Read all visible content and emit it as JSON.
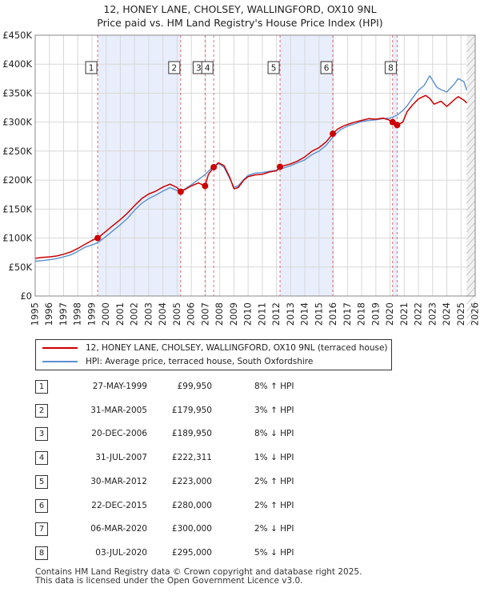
{
  "title_line1": "12, HONEY LANE, CHOLSEY, WALLINGFORD, OX10 9NL",
  "title_line2": "Price paid vs. HM Land Registry's House Price Index (HPI)",
  "colors": {
    "price_line": "#cc0000",
    "hpi_line": "#5b8fd0",
    "shade": "#e8eefb",
    "vline": "#e06a6a",
    "grid": "#d8d8d8"
  },
  "chart_data": {
    "type": "line",
    "x_range": [
      1995,
      2026
    ],
    "ylim": [
      0,
      450000
    ],
    "y_ticks": [
      {
        "value": 0,
        "label": "£0"
      },
      {
        "value": 50000,
        "label": "£50K"
      },
      {
        "value": 100000,
        "label": "£100K"
      },
      {
        "value": 150000,
        "label": "£150K"
      },
      {
        "value": 200000,
        "label": "£200K"
      },
      {
        "value": 250000,
        "label": "£250K"
      },
      {
        "value": 300000,
        "label": "£300K"
      },
      {
        "value": 350000,
        "label": "£350K"
      },
      {
        "value": 400000,
        "label": "£400K"
      },
      {
        "value": 450000,
        "label": "£450K"
      }
    ],
    "x_ticks": [
      "1995",
      "1996",
      "1997",
      "1998",
      "1999",
      "2000",
      "2001",
      "2002",
      "2003",
      "2004",
      "2005",
      "2006",
      "2007",
      "2008",
      "2009",
      "2010",
      "2011",
      "2012",
      "2013",
      "2014",
      "2015",
      "2016",
      "2017",
      "2018",
      "2019",
      "2020",
      "2021",
      "2022",
      "2023",
      "2024",
      "2025",
      "2026"
    ],
    "shaded_periods": [
      [
        1999.4,
        2005.25
      ],
      [
        2012.25,
        2015.97
      ],
      [
        2020.2,
        2020.5
      ]
    ],
    "series": [
      {
        "name": "12, HONEY LANE, CHOLSEY, WALLINGFORD, OX10 9NL (terraced house)",
        "points": [
          [
            1995.0,
            65000
          ],
          [
            1995.5,
            66500
          ],
          [
            1996.0,
            67500
          ],
          [
            1996.5,
            69000
          ],
          [
            1997.0,
            72000
          ],
          [
            1997.5,
            76000
          ],
          [
            1998.0,
            82000
          ],
          [
            1998.5,
            89000
          ],
          [
            1999.0,
            96000
          ],
          [
            1999.4,
            99950
          ],
          [
            2000.0,
            112000
          ],
          [
            2000.5,
            122000
          ],
          [
            2001.0,
            132000
          ],
          [
            2001.5,
            143000
          ],
          [
            2002.0,
            156000
          ],
          [
            2002.5,
            168000
          ],
          [
            2003.0,
            176000
          ],
          [
            2003.5,
            181000
          ],
          [
            2004.0,
            188000
          ],
          [
            2004.5,
            193000
          ],
          [
            2005.0,
            187000
          ],
          [
            2005.25,
            179950
          ],
          [
            2005.5,
            183000
          ],
          [
            2006.0,
            190000
          ],
          [
            2006.5,
            195000
          ],
          [
            2006.97,
            189950
          ],
          [
            2007.2,
            210000
          ],
          [
            2007.58,
            222311
          ],
          [
            2007.9,
            230000
          ],
          [
            2008.3,
            225000
          ],
          [
            2008.7,
            205000
          ],
          [
            2009.0,
            185000
          ],
          [
            2009.3,
            187000
          ],
          [
            2009.7,
            200000
          ],
          [
            2010.0,
            206000
          ],
          [
            2010.5,
            209000
          ],
          [
            2011.0,
            210000
          ],
          [
            2011.5,
            214000
          ],
          [
            2012.0,
            216000
          ],
          [
            2012.25,
            223000
          ],
          [
            2012.7,
            226000
          ],
          [
            2013.0,
            228000
          ],
          [
            2013.5,
            233000
          ],
          [
            2014.0,
            240000
          ],
          [
            2014.5,
            250000
          ],
          [
            2015.0,
            256000
          ],
          [
            2015.5,
            266000
          ],
          [
            2015.97,
            280000
          ],
          [
            2016.3,
            288000
          ],
          [
            2016.7,
            293000
          ],
          [
            2017.0,
            296000
          ],
          [
            2017.5,
            300000
          ],
          [
            2018.0,
            303000
          ],
          [
            2018.5,
            306000
          ],
          [
            2019.0,
            305000
          ],
          [
            2019.5,
            307000
          ],
          [
            2019.9,
            304000
          ],
          [
            2020.18,
            300000
          ],
          [
            2020.5,
            295000
          ],
          [
            2020.9,
            300000
          ],
          [
            2021.2,
            318000
          ],
          [
            2021.6,
            330000
          ],
          [
            2022.0,
            340000
          ],
          [
            2022.5,
            346000
          ],
          [
            2022.8,
            341000
          ],
          [
            2023.1,
            331000
          ],
          [
            2023.6,
            336000
          ],
          [
            2024.0,
            327000
          ],
          [
            2024.5,
            338000
          ],
          [
            2024.8,
            344000
          ],
          [
            2025.2,
            338000
          ],
          [
            2025.4,
            333000
          ]
        ]
      },
      {
        "name": "HPI: Average price, terraced house, South Oxfordshire",
        "points": [
          [
            1995.0,
            60000
          ],
          [
            1995.5,
            61000
          ],
          [
            1996.0,
            62500
          ],
          [
            1996.5,
            64500
          ],
          [
            1997.0,
            67500
          ],
          [
            1997.5,
            71000
          ],
          [
            1998.0,
            77000
          ],
          [
            1998.5,
            84000
          ],
          [
            1999.0,
            88000
          ],
          [
            1999.4,
            92000
          ],
          [
            2000.0,
            103000
          ],
          [
            2000.5,
            113000
          ],
          [
            2001.0,
            123000
          ],
          [
            2001.5,
            134000
          ],
          [
            2002.0,
            148000
          ],
          [
            2002.5,
            160000
          ],
          [
            2003.0,
            168000
          ],
          [
            2003.5,
            174000
          ],
          [
            2004.0,
            181000
          ],
          [
            2004.5,
            187000
          ],
          [
            2005.0,
            182000
          ],
          [
            2005.5,
            184000
          ],
          [
            2006.0,
            192000
          ],
          [
            2006.5,
            201000
          ],
          [
            2007.0,
            210000
          ],
          [
            2007.58,
            225000
          ],
          [
            2008.0,
            228000
          ],
          [
            2008.3,
            222000
          ],
          [
            2008.7,
            203000
          ],
          [
            2009.0,
            188000
          ],
          [
            2009.3,
            190000
          ],
          [
            2009.7,
            201000
          ],
          [
            2010.0,
            208000
          ],
          [
            2010.5,
            212000
          ],
          [
            2011.0,
            213000
          ],
          [
            2011.5,
            215000
          ],
          [
            2012.0,
            217000
          ],
          [
            2012.5,
            221000
          ],
          [
            2013.0,
            225000
          ],
          [
            2013.5,
            230000
          ],
          [
            2014.0,
            235000
          ],
          [
            2014.5,
            244000
          ],
          [
            2015.0,
            250000
          ],
          [
            2015.5,
            260000
          ],
          [
            2016.0,
            275000
          ],
          [
            2016.5,
            287000
          ],
          [
            2017.0,
            293000
          ],
          [
            2017.5,
            297000
          ],
          [
            2018.0,
            301000
          ],
          [
            2018.5,
            303000
          ],
          [
            2019.0,
            304000
          ],
          [
            2019.5,
            306000
          ],
          [
            2020.0,
            307000
          ],
          [
            2020.5,
            312000
          ],
          [
            2020.9,
            320000
          ],
          [
            2021.2,
            328000
          ],
          [
            2021.6,
            342000
          ],
          [
            2022.0,
            355000
          ],
          [
            2022.4,
            363000
          ],
          [
            2022.8,
            380000
          ],
          [
            2023.0,
            372000
          ],
          [
            2023.3,
            360000
          ],
          [
            2023.6,
            356000
          ],
          [
            2024.0,
            352000
          ],
          [
            2024.5,
            365000
          ],
          [
            2024.8,
            375000
          ],
          [
            2025.2,
            370000
          ],
          [
            2025.4,
            355000
          ]
        ]
      }
    ],
    "sales": [
      {
        "id": "1",
        "x": 1999.4,
        "value": 99950
      },
      {
        "id": "2",
        "x": 2005.25,
        "value": 179950
      },
      {
        "id": "3",
        "x": 2006.97,
        "value": 189950
      },
      {
        "id": "4",
        "x": 2007.58,
        "value": 222311
      },
      {
        "id": "5",
        "x": 2012.25,
        "value": 223000
      },
      {
        "id": "6",
        "x": 2015.97,
        "value": 280000
      },
      {
        "id": "7",
        "x": 2020.18,
        "value": 300000
      },
      {
        "id": "8",
        "x": 2020.5,
        "value": 295000
      }
    ],
    "marker_labels": [
      {
        "text": "1",
        "x": 1999.4
      },
      {
        "text": "2",
        "x": 2005.25
      },
      {
        "text": "3",
        "x": 2006.97
      },
      {
        "text": "4",
        "x": 2007.58
      },
      {
        "text": "5",
        "x": 2012.25
      },
      {
        "text": "6",
        "x": 2015.97
      },
      {
        "text": "8",
        "x": 2020.5
      }
    ]
  },
  "legend": {
    "price_label": "12, HONEY LANE, CHOLSEY, WALLINGFORD, OX10 9NL (terraced house)",
    "hpi_label": "HPI: Average price, terraced house, South Oxfordshire"
  },
  "transactions": [
    {
      "num": "1",
      "date": "27-MAY-1999",
      "price": "£99,950",
      "hpi": "8% ↑ HPI"
    },
    {
      "num": "2",
      "date": "31-MAR-2005",
      "price": "£179,950",
      "hpi": "3% ↑ HPI"
    },
    {
      "num": "3",
      "date": "20-DEC-2006",
      "price": "£189,950",
      "hpi": "8% ↓ HPI"
    },
    {
      "num": "4",
      "date": "31-JUL-2007",
      "price": "£222,311",
      "hpi": "1% ↓ HPI"
    },
    {
      "num": "5",
      "date": "30-MAR-2012",
      "price": "£223,000",
      "hpi": "2% ↑ HPI"
    },
    {
      "num": "6",
      "date": "22-DEC-2015",
      "price": "£280,000",
      "hpi": "2% ↑ HPI"
    },
    {
      "num": "7",
      "date": "06-MAR-2020",
      "price": "£300,000",
      "hpi": "2% ↓ HPI"
    },
    {
      "num": "8",
      "date": "03-JUL-2020",
      "price": "£295,000",
      "hpi": "5% ↓ HPI"
    }
  ],
  "footer": {
    "line1": "Contains HM Land Registry data © Crown copyright and database right 2025.",
    "line2": "This data is licensed under the Open Government Licence v3.0."
  }
}
